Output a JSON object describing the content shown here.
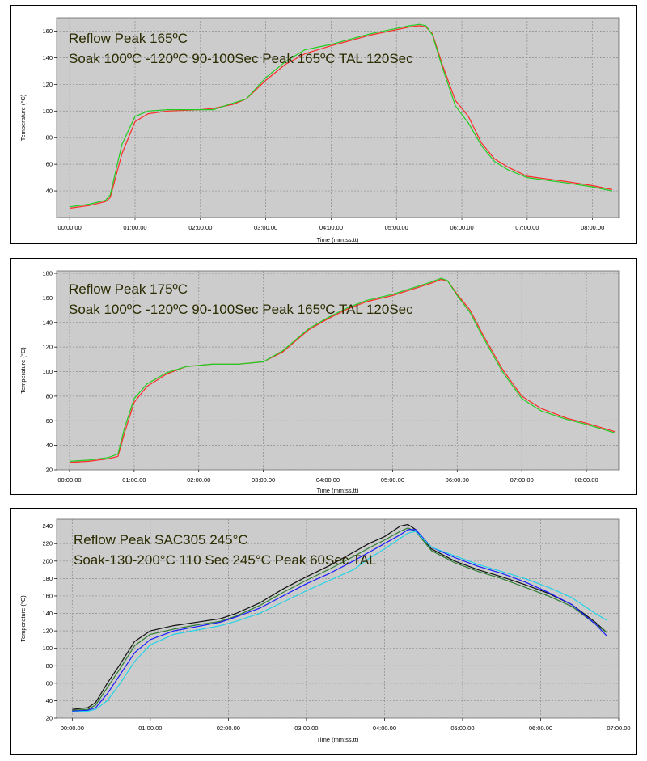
{
  "chart_data": [
    {
      "type": "line",
      "title": "Reflow Peak 165ºC",
      "subtitle": "Soak 100ºC -120ºC 90-100Sec Peak 165ºC TAL 120Sec",
      "xlabel": "Time (mm:ss.tt)",
      "ylabel": "Temperature (°C)",
      "x_unit": "minutes",
      "xlim": [
        -0.2,
        8.4
      ],
      "ylim": [
        20,
        170
      ],
      "x_ticks": [
        "00:00.00",
        "01:00.00",
        "02:00.00",
        "03:00.00",
        "04:00.00",
        "05:00.00",
        "06:00.00",
        "07:00.00",
        "08:00.00"
      ],
      "y_ticks": [
        40,
        60,
        80,
        100,
        120,
        140,
        160
      ],
      "grid": true,
      "series": [
        {
          "color": "#ff2a2a",
          "x": [
            0,
            0.3,
            0.55,
            0.62,
            0.8,
            1.0,
            1.2,
            1.5,
            2.0,
            2.2,
            2.5,
            2.7,
            3.0,
            3.3,
            3.6,
            4.0,
            4.3,
            4.6,
            5.0,
            5.2,
            5.35,
            5.45,
            5.55,
            5.7,
            5.9,
            6.1,
            6.3,
            6.5,
            6.7,
            7.0,
            7.3,
            7.6,
            8.0,
            8.3
          ],
          "y": [
            27,
            29,
            32,
            35,
            68,
            92,
            98,
            100,
            101,
            102,
            105,
            109,
            123,
            135,
            143,
            149,
            153,
            157,
            161,
            163,
            164,
            163,
            158,
            135,
            108,
            96,
            76,
            64,
            58,
            51,
            49,
            47,
            44,
            41
          ]
        },
        {
          "color": "#22cc22",
          "x": [
            0,
            0.3,
            0.55,
            0.62,
            0.8,
            1.0,
            1.2,
            1.5,
            2.0,
            2.2,
            2.5,
            2.7,
            3.0,
            3.3,
            3.6,
            4.0,
            4.3,
            4.6,
            5.0,
            5.2,
            5.35,
            5.45,
            5.55,
            5.7,
            5.9,
            6.1,
            6.3,
            6.5,
            6.7,
            7.0,
            7.3,
            7.6,
            8.0,
            8.3
          ],
          "y": [
            28,
            30,
            33,
            37,
            75,
            96,
            100,
            101,
            101,
            101,
            106,
            109,
            125,
            137,
            146,
            150,
            154,
            158,
            162,
            164,
            165,
            164,
            157,
            133,
            104,
            91,
            74,
            62,
            56,
            50,
            48,
            46,
            43,
            40
          ]
        }
      ]
    },
    {
      "type": "line",
      "title": "Reflow Peak 175ºC",
      "subtitle": "Soak 100ºC -120ºC 90-100Sec Peak 165ºC TAL 120Sec",
      "xlabel": "Time (mm:ss.tt)",
      "ylabel": "Temperature (°C)",
      "x_unit": "minutes",
      "xlim": [
        -0.2,
        8.5
      ],
      "ylim": [
        20,
        182
      ],
      "x_ticks": [
        "00:00.00",
        "01:00.00",
        "02:00.00",
        "03:00.00",
        "04:00.00",
        "05:00.00",
        "06:00.00",
        "07:00.00",
        "08:00.00"
      ],
      "y_ticks": [
        20,
        40,
        60,
        80,
        100,
        120,
        140,
        160,
        180
      ],
      "grid": true,
      "series": [
        {
          "color": "#ff2a2a",
          "x": [
            0,
            0.3,
            0.6,
            0.75,
            0.85,
            1.0,
            1.2,
            1.5,
            1.8,
            2.2,
            2.6,
            3.0,
            3.3,
            3.7,
            4.0,
            4.3,
            4.6,
            5.0,
            5.3,
            5.6,
            5.75,
            5.85,
            6.0,
            6.2,
            6.4,
            6.7,
            7.0,
            7.3,
            7.7,
            8.0,
            8.45
          ],
          "y": [
            26,
            27,
            29,
            31,
            50,
            75,
            88,
            98,
            104,
            106,
            106,
            108,
            116,
            134,
            143,
            151,
            157,
            162,
            167,
            172,
            175,
            174,
            163,
            150,
            130,
            102,
            80,
            70,
            62,
            58,
            51
          ]
        },
        {
          "color": "#22cc22",
          "x": [
            0,
            0.3,
            0.6,
            0.75,
            0.85,
            1.0,
            1.2,
            1.5,
            1.8,
            2.2,
            2.6,
            3.0,
            3.3,
            3.7,
            4.0,
            4.3,
            4.6,
            5.0,
            5.3,
            5.6,
            5.75,
            5.85,
            6.0,
            6.2,
            6.4,
            6.7,
            7.0,
            7.3,
            7.7,
            8.0,
            8.45
          ],
          "y": [
            27,
            28,
            30,
            33,
            54,
            78,
            90,
            99,
            104,
            106,
            106,
            108,
            117,
            135,
            144,
            152,
            158,
            163,
            168,
            173,
            176,
            174,
            162,
            148,
            128,
            100,
            78,
            68,
            61,
            57,
            50
          ]
        }
      ]
    },
    {
      "type": "line",
      "title": "Reflow Peak SAC305 245°C",
      "subtitle": "Soak-130-200°C 110 Sec 245°C Peak 60Sec TAL",
      "xlabel": "Time (mm:ss.tt)",
      "ylabel": "Temperature (°C)",
      "x_unit": "minutes",
      "xlim": [
        -0.2,
        7.0
      ],
      "ylim": [
        20,
        248
      ],
      "x_ticks": [
        "00:00.00",
        "01:00.00",
        "02:00.00",
        "03:00.00",
        "04:00.00",
        "05:00.00",
        "06:00.00",
        "07:00.00"
      ],
      "y_ticks": [
        20,
        40,
        60,
        80,
        100,
        120,
        140,
        160,
        180,
        200,
        220,
        240
      ],
      "grid": true,
      "series": [
        {
          "color": "#111111",
          "x": [
            0,
            0.2,
            0.3,
            0.45,
            0.6,
            0.8,
            1.0,
            1.3,
            1.6,
            1.9,
            2.1,
            2.4,
            2.7,
            3.0,
            3.3,
            3.6,
            3.8,
            4.0,
            4.2,
            4.3,
            4.4,
            4.6,
            4.9,
            5.2,
            5.5,
            5.8,
            6.1,
            6.4,
            6.7,
            6.85
          ],
          "y": [
            30,
            32,
            38,
            60,
            80,
            108,
            120,
            126,
            130,
            134,
            140,
            152,
            168,
            182,
            195,
            210,
            220,
            228,
            240,
            242,
            236,
            214,
            200,
            190,
            182,
            173,
            163,
            150,
            130,
            118
          ]
        },
        {
          "color": "#2e7d32",
          "x": [
            0,
            0.2,
            0.3,
            0.45,
            0.6,
            0.8,
            1.0,
            1.3,
            1.6,
            1.9,
            2.1,
            2.4,
            2.7,
            3.0,
            3.3,
            3.6,
            3.8,
            4.0,
            4.2,
            4.3,
            4.4,
            4.6,
            4.9,
            5.2,
            5.5,
            5.8,
            6.1,
            6.4,
            6.7,
            6.85
          ],
          "y": [
            29,
            30,
            35,
            55,
            75,
            103,
            116,
            122,
            127,
            131,
            137,
            149,
            164,
            178,
            191,
            205,
            215,
            224,
            234,
            238,
            234,
            212,
            198,
            188,
            180,
            170,
            160,
            148,
            128,
            118
          ]
        },
        {
          "color": "#1a1aff",
          "x": [
            0,
            0.2,
            0.3,
            0.45,
            0.6,
            0.8,
            1.0,
            1.3,
            1.6,
            1.9,
            2.1,
            2.4,
            2.7,
            3.0,
            3.3,
            3.6,
            3.8,
            4.0,
            4.2,
            4.3,
            4.4,
            4.6,
            4.9,
            5.2,
            5.5,
            5.8,
            6.1,
            6.4,
            6.7,
            6.85
          ],
          "y": [
            28,
            29,
            32,
            48,
            68,
            95,
            110,
            120,
            125,
            130,
            136,
            146,
            160,
            174,
            186,
            200,
            210,
            220,
            230,
            236,
            236,
            216,
            204,
            194,
            186,
            176,
            164,
            150,
            128,
            114
          ]
        },
        {
          "color": "#22d3e6",
          "x": [
            0,
            0.2,
            0.3,
            0.45,
            0.6,
            0.8,
            1.0,
            1.3,
            1.6,
            1.9,
            2.1,
            2.4,
            2.7,
            3.0,
            3.3,
            3.6,
            3.8,
            4.0,
            4.2,
            4.3,
            4.4,
            4.6,
            4.9,
            5.2,
            5.5,
            5.8,
            6.1,
            6.4,
            6.7,
            6.85
          ],
          "y": [
            27,
            28,
            30,
            40,
            58,
            85,
            104,
            116,
            121,
            126,
            131,
            140,
            153,
            166,
            178,
            190,
            203,
            214,
            226,
            232,
            234,
            216,
            206,
            196,
            188,
            180,
            170,
            158,
            140,
            132
          ]
        }
      ]
    }
  ]
}
